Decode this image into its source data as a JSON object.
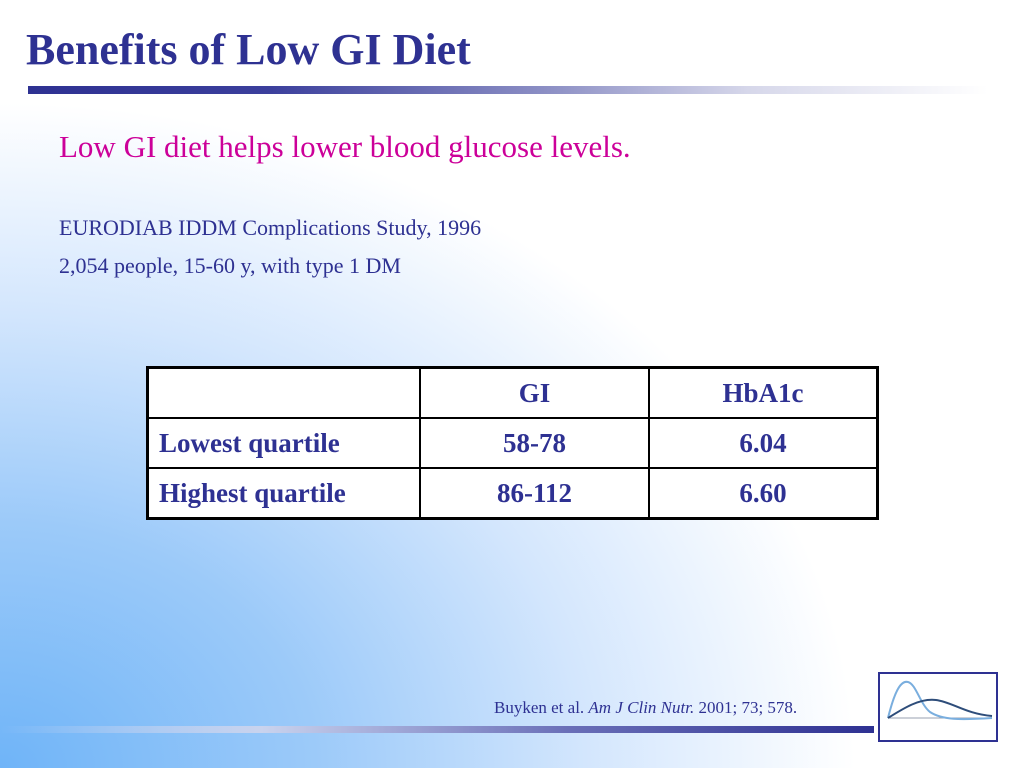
{
  "slide": {
    "title": "Benefits of Low GI Diet",
    "subtitle": "Low GI diet helps lower blood glucose levels.",
    "study_lines": [
      "EURODIAB IDDM Complications Study, 1996",
      "2,054 people, 15-60 y, with type 1 DM"
    ]
  },
  "table": {
    "headers": [
      "",
      "GI",
      "HbA1c"
    ],
    "rows": [
      [
        "Lowest quartile",
        "58-78",
        "6.04"
      ],
      [
        "Highest quartile",
        "86-112",
        "6.60"
      ]
    ]
  },
  "citation": {
    "authors": "Buyken et al.",
    "journal": "Am J Clin Nutr.",
    "details": "2001; 73; 578."
  },
  "colors": {
    "title": "#2e3192",
    "subtitle": "#cc0099",
    "background_gradient": "#6fb4f8"
  },
  "logo": {
    "icon": "glucose-curve-icon"
  }
}
